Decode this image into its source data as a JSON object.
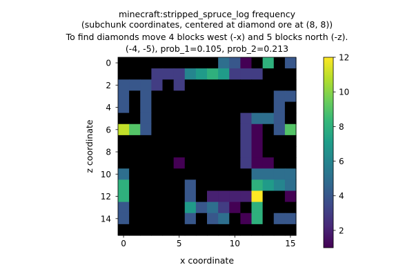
{
  "chart_data": {
    "type": "heatmap",
    "title_lines": [
      "minecraft:stripped_spruce_log frequency",
      "(subchunk coordinates, centered at diamond ore at (8, 8))",
      "To find diamonds move 4 blocks west (-x) and 5 blocks north (-z).",
      "(-4, -5), prob_1=0.105, prob_2=0.213"
    ],
    "xlabel": "x coordinate",
    "ylabel": "z coordinate",
    "x_ticks": [
      0,
      5,
      10,
      15
    ],
    "y_ticks": [
      0,
      2,
      4,
      6,
      8,
      10,
      12,
      14
    ],
    "grid_size": 16,
    "colorbar": {
      "min": 1,
      "max": 12,
      "ticks": [
        2,
        4,
        6,
        8,
        10,
        12
      ]
    },
    "colormap": [
      "#440154",
      "#482878",
      "#3e4989",
      "#31688e",
      "#26828e",
      "#1f9e89",
      "#35b779",
      "#6ece58",
      "#b5de2b",
      "#fde725"
    ],
    "empty_color": "#000000",
    "values": [
      [
        0,
        0,
        0,
        0,
        0,
        0,
        0,
        0,
        0,
        5,
        4,
        1,
        0,
        8,
        0,
        4
      ],
      [
        0,
        0,
        0,
        3,
        3,
        3,
        6,
        7,
        8,
        7,
        3,
        3,
        3,
        0,
        0,
        0
      ],
      [
        4,
        4,
        4,
        3,
        0,
        3,
        0,
        0,
        0,
        0,
        0,
        0,
        0,
        0,
        0,
        0
      ],
      [
        4,
        0,
        4,
        0,
        0,
        0,
        0,
        0,
        0,
        0,
        0,
        0,
        0,
        0,
        4,
        4
      ],
      [
        4,
        0,
        4,
        0,
        0,
        0,
        0,
        0,
        0,
        0,
        0,
        0,
        0,
        0,
        4,
        0
      ],
      [
        0,
        0,
        4,
        0,
        0,
        0,
        0,
        0,
        0,
        0,
        0,
        3,
        5,
        5,
        4,
        0
      ],
      [
        11,
        9,
        4,
        0,
        0,
        0,
        0,
        0,
        0,
        0,
        0,
        3,
        1,
        0,
        4,
        9
      ],
      [
        0,
        0,
        0,
        0,
        0,
        0,
        0,
        0,
        0,
        0,
        0,
        3,
        1,
        0,
        0,
        0
      ],
      [
        0,
        0,
        0,
        0,
        0,
        0,
        0,
        0,
        0,
        0,
        0,
        3,
        1,
        0,
        0,
        0
      ],
      [
        0,
        0,
        0,
        0,
        0,
        1,
        0,
        0,
        0,
        0,
        0,
        3,
        1,
        1,
        0,
        0
      ],
      [
        5,
        0,
        0,
        0,
        0,
        0,
        0,
        0,
        0,
        0,
        0,
        0,
        5,
        5,
        5,
        5
      ],
      [
        8,
        0,
        0,
        0,
        0,
        0,
        4,
        0,
        0,
        0,
        0,
        0,
        8,
        7,
        6,
        5
      ],
      [
        8,
        0,
        0,
        0,
        0,
        0,
        4,
        0,
        2,
        2,
        2,
        2,
        12,
        0,
        0,
        1
      ],
      [
        4,
        0,
        0,
        0,
        0,
        0,
        7,
        4,
        5,
        3,
        1,
        0,
        8,
        0,
        0,
        0
      ],
      [
        4,
        0,
        0,
        0,
        0,
        0,
        4,
        0,
        4,
        5,
        0,
        1,
        8,
        0,
        4,
        4
      ],
      [
        0,
        0,
        0,
        0,
        0,
        0,
        0,
        0,
        0,
        0,
        0,
        0,
        0,
        0,
        0,
        0
      ]
    ]
  }
}
